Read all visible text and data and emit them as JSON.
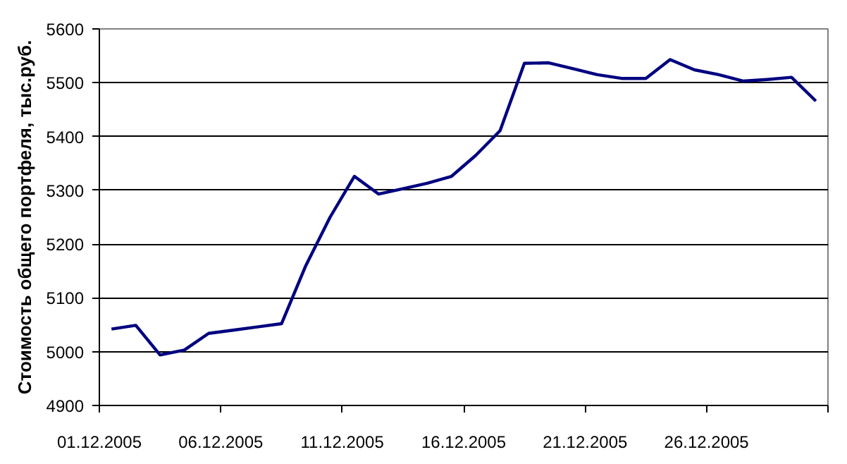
{
  "chart_data": {
    "type": "line",
    "ylabel": "Стоимость общего портфеля, тыс.руб.",
    "x": [
      "2005-12-01T12:00",
      "2005-12-02T12:00",
      "2005-12-03T12:00",
      "2005-12-04T12:00",
      "2005-12-05T12:00",
      "2005-12-06T12:00",
      "2005-12-07T12:00",
      "2005-12-08T12:00",
      "2005-12-09T12:00",
      "2005-12-10T12:00",
      "2005-12-11T12:00",
      "2005-12-12T12:00",
      "2005-12-13T12:00",
      "2005-12-14T12:00",
      "2005-12-15T12:00",
      "2005-12-16T12:00",
      "2005-12-17T12:00",
      "2005-12-18T12:00",
      "2005-12-19T12:00",
      "2005-12-20T12:00",
      "2005-12-21T12:00",
      "2005-12-22T12:00",
      "2005-12-23T12:00",
      "2005-12-24T12:00",
      "2005-12-25T12:00",
      "2005-12-26T12:00",
      "2005-12-27T12:00",
      "2005-12-28T12:00",
      "2005-12-29T12:00",
      "2005-12-30T12:00"
    ],
    "series": [
      {
        "color": "#000080",
        "values": [
          5042,
          5049,
          4994,
          5003,
          5034,
          5040,
          5046,
          5052,
          5160,
          5250,
          5326,
          5293,
          5303,
          5313,
          5326,
          5365,
          5411,
          5536,
          5537,
          5526,
          5515,
          5508,
          5508,
          5543,
          5524,
          5515,
          5503,
          5506,
          5510,
          5466
        ]
      }
    ],
    "xlim": [
      "2005-12-01",
      "2005-12-31"
    ],
    "xticks": [
      {
        "value": "2005-12-01",
        "label": "01.12.2005"
      },
      {
        "value": "2005-12-06",
        "label": "06.12.2005"
      },
      {
        "value": "2005-12-11",
        "label": "11.12.2005"
      },
      {
        "value": "2005-12-16",
        "label": "16.12.2005"
      },
      {
        "value": "2005-12-21",
        "label": "21.12.2005"
      },
      {
        "value": "2005-12-26",
        "label": "26.12.2005"
      },
      {
        "value": "2005-12-31",
        "label": null
      }
    ],
    "ylim": [
      4900,
      5600
    ],
    "yticks": [
      4900,
      5000,
      5100,
      5200,
      5300,
      5400,
      5500,
      5600
    ],
    "grid": "y",
    "marker": "none",
    "line_style": "solid"
  }
}
